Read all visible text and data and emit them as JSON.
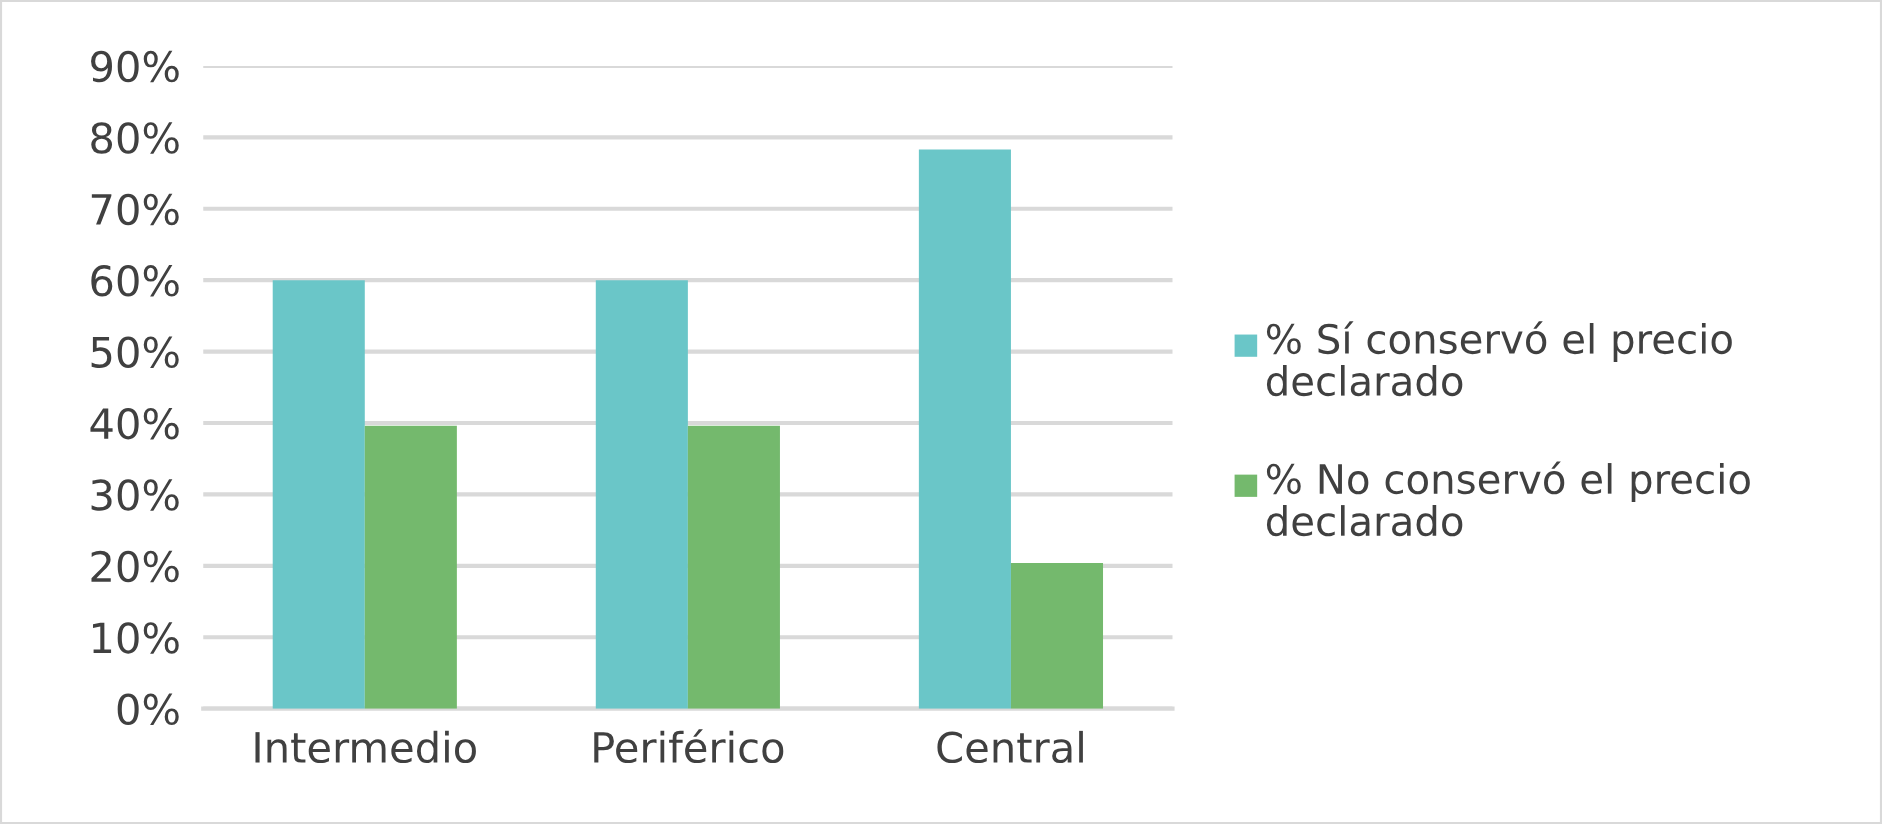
{
  "chart_data": {
    "type": "bar",
    "categories": [
      "Intermedio",
      "Periférico",
      "Central"
    ],
    "series": [
      {
        "name": "% Sí conservó el precio declarado",
        "color": "#6ac6c8",
        "values": [
          60,
          60,
          78.3
        ]
      },
      {
        "name": "% No conservó el precio declarado",
        "color": "#74b96d",
        "values": [
          39.6,
          39.6,
          20.4
        ]
      }
    ],
    "ylim": [
      0,
      90
    ],
    "yticks": [
      {
        "value": 0,
        "label": "0%"
      },
      {
        "value": 10,
        "label": "10%"
      },
      {
        "value": 20,
        "label": "20%"
      },
      {
        "value": 30,
        "label": "30%"
      },
      {
        "value": 40,
        "label": "40%"
      },
      {
        "value": 50,
        "label": "50%"
      },
      {
        "value": 60,
        "label": "60%"
      },
      {
        "value": 70,
        "label": "70%"
      },
      {
        "value": 80,
        "label": "80%"
      },
      {
        "value": 90,
        "label": "90%"
      }
    ],
    "grid": "y",
    "legend": "right"
  }
}
